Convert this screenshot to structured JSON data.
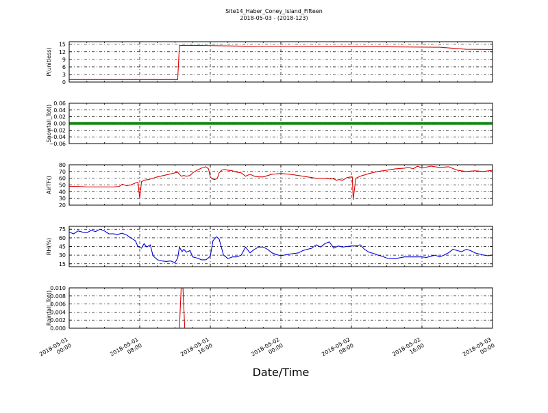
{
  "figure": {
    "title_line1": "Site14_Haber_Coney_Island_Fifteen",
    "title_line2": "2018-05-03 - (2018-123)",
    "xlabel": "Date/Time",
    "x_ticks": [
      {
        "line1": "2018-05-01",
        "line2": "00:00"
      },
      {
        "line1": "2018-05-01",
        "line2": "08:00"
      },
      {
        "line1": "2018-05-01",
        "line2": "16:00"
      },
      {
        "line1": "2018-05-02",
        "line2": "00:00"
      },
      {
        "line1": "2018-05-02",
        "line2": "08:00"
      },
      {
        "line1": "2018-05-02",
        "line2": "16:00"
      },
      {
        "line1": "2018-05-03",
        "line2": "00:00"
      }
    ]
  },
  "chart_data": [
    {
      "type": "line",
      "ylabel": "P(unitless)",
      "ylim": [
        0,
        16
      ],
      "y_ticks": [
        "0",
        "3",
        "6",
        "9",
        "12",
        "15"
      ],
      "xlim_hours": [
        0,
        48
      ],
      "grid": true,
      "color": "#dd0000",
      "series": [
        {
          "x": [
            0,
            12.3,
            12.5,
            15,
            20,
            30,
            36,
            42,
            45,
            48
          ],
          "values": [
            1.0,
            1.0,
            14.5,
            14.5,
            14.2,
            14.0,
            14.0,
            13.8,
            13.0,
            12.9
          ]
        }
      ]
    },
    {
      "type": "line",
      "ylabel": "Snowfall_Tot()",
      "ylim": [
        -0.06,
        0.06
      ],
      "y_ticks": [
        "−0.06",
        "−0.04",
        "−0.02",
        "0.00",
        "0.02",
        "0.04",
        "0.06"
      ],
      "xlim_hours": [
        0,
        48
      ],
      "grid": true,
      "color": "#008000",
      "series": [
        {
          "x": [
            0,
            48
          ],
          "values": [
            0,
            0
          ]
        }
      ]
    },
    {
      "type": "line",
      "ylabel": "AirTF()",
      "ylim": [
        20,
        80
      ],
      "y_ticks": [
        "20",
        "30",
        "40",
        "50",
        "60",
        "70",
        "80"
      ],
      "xlim_hours": [
        0,
        48
      ],
      "grid": true,
      "color": "#dd0000",
      "series": [
        {
          "x": [
            0,
            1,
            2,
            3,
            4,
            5,
            5.7,
            6,
            6.5,
            7,
            7.5,
            7.8,
            8,
            8.2,
            8.5,
            9,
            10,
            11,
            12,
            12.3,
            12.7,
            13,
            13.3,
            13.7,
            14,
            14.5,
            15,
            15.5,
            15.8,
            16,
            16.2,
            16.5,
            16.8,
            17,
            17.3,
            17.6,
            18,
            18.5,
            19,
            19.5,
            20,
            20.5,
            21,
            21.5,
            22,
            23,
            24,
            25,
            26,
            27,
            28,
            29,
            29.5,
            30,
            30.3,
            30.6,
            31,
            31.5,
            32,
            32.1,
            32.2,
            32.5,
            33,
            34,
            35,
            36,
            37,
            38,
            38.5,
            39,
            39.5,
            40,
            41,
            42,
            43,
            44,
            45,
            46,
            47,
            48
          ],
          "values": [
            48,
            48,
            47,
            47,
            47,
            47,
            48,
            51,
            49,
            50,
            53,
            54,
            30,
            55,
            57,
            58,
            62,
            65,
            68,
            69,
            63,
            64,
            63,
            64,
            68,
            72,
            75,
            77,
            74,
            62,
            59,
            58,
            60,
            68,
            72,
            73,
            72,
            71,
            69,
            68,
            63,
            66,
            63,
            62,
            62,
            66,
            67,
            66,
            64,
            62,
            60,
            60,
            59,
            59,
            57,
            58,
            57,
            61,
            62,
            62,
            28,
            60,
            63,
            67,
            70,
            72,
            74,
            75,
            76,
            74,
            78,
            75,
            78,
            76,
            77,
            72,
            70,
            71,
            70,
            72
          ]
        }
      ]
    },
    {
      "type": "line",
      "ylabel": "RH(%)",
      "ylim": [
        10,
        80
      ],
      "y_ticks": [
        "15",
        "30",
        "45",
        "60",
        "75"
      ],
      "xlim_hours": [
        0,
        48
      ],
      "grid": true,
      "color": "#0000dd",
      "series": [
        {
          "x": [
            0,
            0.5,
            1,
            1.5,
            2,
            2.5,
            3,
            3.5,
            4,
            4.5,
            5,
            5.5,
            6,
            6.5,
            7,
            7.5,
            7.8,
            8.2,
            8.5,
            8.8,
            9.2,
            9.5,
            10,
            10.5,
            11,
            11.5,
            12,
            12.3,
            12.5,
            12.8,
            13,
            13.3,
            13.7,
            14,
            14.5,
            15,
            15.5,
            16,
            16.3,
            16.7,
            17,
            17.5,
            18,
            18.5,
            19,
            19.5,
            20,
            20.5,
            21,
            21.5,
            22,
            22.5,
            23,
            23.5,
            24,
            25,
            26,
            26.5,
            27,
            27.5,
            28,
            28.5,
            29,
            29.5,
            30,
            30.5,
            31,
            31.5,
            32,
            32.5,
            33,
            33.5,
            34,
            34.5,
            35,
            35.5,
            36,
            37,
            38,
            39,
            40,
            40.5,
            41,
            41.5,
            42,
            42.5,
            43,
            43.5,
            44,
            44.5,
            45,
            45.5,
            46,
            46.5,
            47,
            47.5,
            48
          ],
          "values": [
            70,
            67,
            72,
            70,
            69,
            73,
            71,
            75,
            72,
            67,
            67,
            66,
            68,
            65,
            60,
            55,
            45,
            42,
            50,
            44,
            48,
            29,
            22,
            20,
            19,
            20,
            17,
            25,
            44,
            36,
            40,
            35,
            38,
            27,
            25,
            22,
            22,
            28,
            55,
            62,
            58,
            30,
            24,
            27,
            27,
            30,
            44,
            34,
            40,
            44,
            44,
            40,
            34,
            31,
            29,
            32,
            34,
            38,
            40,
            42,
            48,
            44,
            50,
            53,
            42,
            46,
            44,
            45,
            46,
            46,
            48,
            40,
            35,
            33,
            30,
            28,
            25,
            24,
            27,
            27,
            27,
            26,
            28,
            30,
            27,
            30,
            34,
            40,
            38,
            36,
            40,
            38,
            34,
            32,
            30,
            29,
            30
          ]
        }
      ]
    },
    {
      "type": "line",
      "ylabel": "Rainfall_Tot()",
      "ylim": [
        0,
        0.01
      ],
      "y_ticks": [
        "0.000",
        "0.002",
        "0.004",
        "0.006",
        "0.008",
        "0.010"
      ],
      "xlim_hours": [
        0,
        48
      ],
      "grid": true,
      "color": "#dd0000",
      "series": [
        {
          "x": [
            0,
            12.5,
            12.7,
            12.9,
            13.1,
            48
          ],
          "values": [
            0,
            0,
            0.01,
            0.01,
            0,
            0
          ]
        }
      ]
    }
  ]
}
